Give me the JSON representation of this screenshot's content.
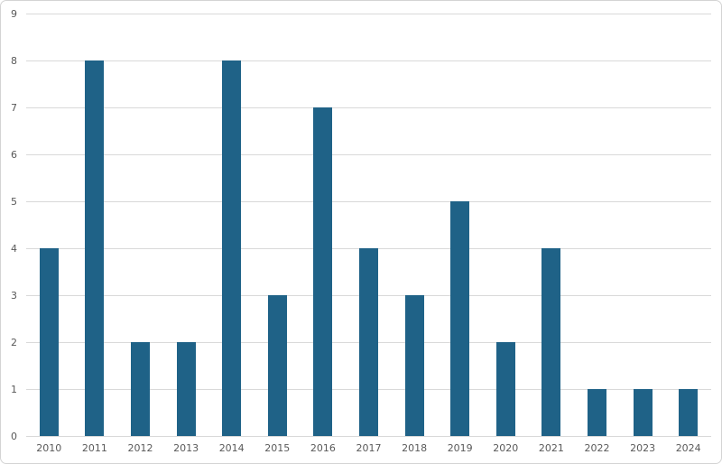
{
  "chart_data": {
    "type": "bar",
    "title": "",
    "xlabel": "",
    "ylabel": "",
    "categories": [
      "2010",
      "2011",
      "2012",
      "2013",
      "2014",
      "2015",
      "2016",
      "2017",
      "2018",
      "2019",
      "2020",
      "2021",
      "2022",
      "2023",
      "2024"
    ],
    "values": [
      4,
      8,
      2,
      2,
      8,
      3,
      7,
      4,
      3,
      5,
      2,
      4,
      1,
      1,
      1
    ],
    "ylim": [
      0,
      9
    ],
    "y_ticks": [
      0,
      1,
      2,
      3,
      4,
      5,
      6,
      7,
      8,
      9
    ],
    "grid": "horizontal",
    "legend": "none",
    "colors": {
      "bar": "#1f6287",
      "gridline": "#d9d9d9",
      "tick_label": "#595959",
      "frame_border": "#d4d4d4",
      "background": "#ffffff"
    }
  }
}
